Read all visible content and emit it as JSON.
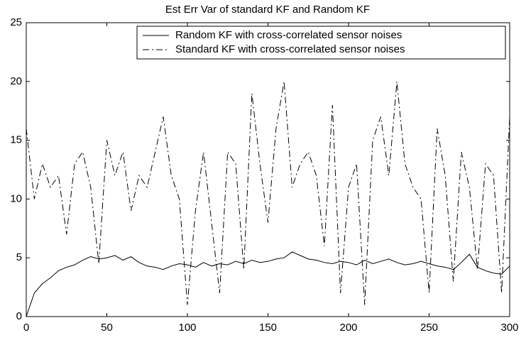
{
  "chart_data": {
    "type": "line",
    "title": "Est Err Var of standard KF and Random KF",
    "x": [
      0,
      5,
      10,
      15,
      20,
      25,
      30,
      35,
      40,
      45,
      50,
      55,
      60,
      65,
      70,
      75,
      80,
      85,
      90,
      95,
      100,
      105,
      110,
      115,
      120,
      125,
      130,
      135,
      140,
      145,
      150,
      155,
      160,
      165,
      170,
      175,
      180,
      185,
      190,
      195,
      200,
      205,
      210,
      215,
      220,
      225,
      230,
      235,
      240,
      245,
      250,
      255,
      260,
      265,
      270,
      275,
      280,
      285,
      290,
      295,
      300
    ],
    "series": [
      {
        "name": "Random KF with cross-correlated sensor noises",
        "color": "#000000",
        "line_style": "solid",
        "values": [
          0,
          2.0,
          2.8,
          3.3,
          3.9,
          4.2,
          4.4,
          4.8,
          5.1,
          4.9,
          5.0,
          5.2,
          4.8,
          5.1,
          4.6,
          4.3,
          4.2,
          4.0,
          4.3,
          4.5,
          4.4,
          4.2,
          4.6,
          4.3,
          4.5,
          4.4,
          4.7,
          4.5,
          4.8,
          4.6,
          4.7,
          4.9,
          5.0,
          5.5,
          5.2,
          4.9,
          4.8,
          4.6,
          4.5,
          4.7,
          4.6,
          4.4,
          4.8,
          4.5,
          4.7,
          4.9,
          4.6,
          4.4,
          4.5,
          4.7,
          4.5,
          4.3,
          4.2,
          4.0,
          4.6,
          5.3,
          4.2,
          3.9,
          3.7,
          3.6,
          4.3
        ]
      },
      {
        "name": "Standard KF with cross-correlated sensor noises",
        "color": "#000000",
        "line_style": "dash-dot",
        "values": [
          16,
          10,
          13,
          11,
          12,
          7,
          13,
          14,
          11,
          4.5,
          15,
          12,
          14,
          9,
          12,
          11,
          14,
          17,
          12,
          10,
          1,
          9,
          14,
          8,
          2,
          14,
          13,
          4,
          19,
          13,
          8,
          16,
          20,
          11,
          13,
          14,
          12,
          6,
          18,
          2,
          11,
          13,
          1,
          15,
          17,
          12,
          20,
          13,
          11,
          10,
          2,
          16,
          12,
          3,
          14,
          11,
          4,
          13,
          12,
          2,
          17
        ]
      }
    ],
    "xlim": [
      0,
      300
    ],
    "xticks": [
      0,
      50,
      100,
      150,
      200,
      250,
      300
    ],
    "ylim": [
      0,
      25
    ],
    "yticks": [
      0,
      5,
      10,
      15,
      20,
      25
    ],
    "grid": false,
    "legend": "upper right"
  }
}
